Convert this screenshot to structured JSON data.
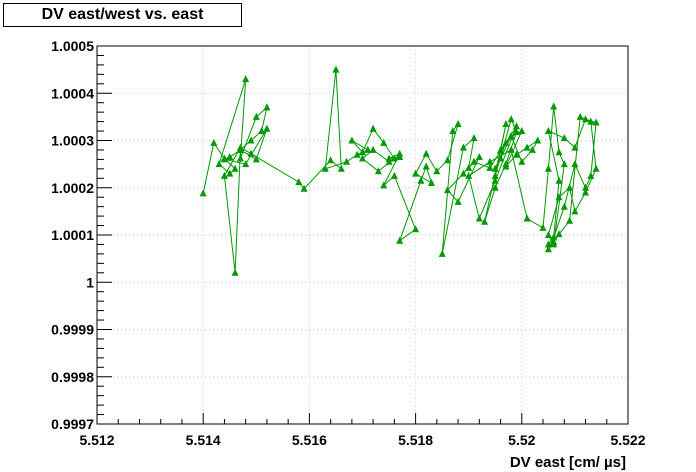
{
  "chart_data": {
    "type": "scatter",
    "title": "DV east/west vs. east",
    "xlabel": "DV east [cm/ µs]",
    "ylabel": "",
    "xlim": [
      5.512,
      5.522
    ],
    "ylim": [
      0.9997,
      1.0005
    ],
    "xticks": [
      "5.512",
      "5.514",
      "5.516",
      "5.518",
      "5.52",
      "5.522"
    ],
    "yticks": [
      "0.9997",
      "0.9998",
      "0.9999",
      "1",
      "1.0001",
      "1.0002",
      "1.0003",
      "1.0004",
      "1.0005"
    ],
    "grid": true,
    "color": "#009900",
    "marker": "triangle",
    "connected": true,
    "series": [
      {
        "x": [
          5.514,
          5.5142,
          5.5144,
          5.5146,
          5.5145,
          5.5143,
          5.5148,
          5.5147,
          5.515,
          5.5152,
          5.5151,
          5.5149,
          5.5147,
          5.5145,
          5.5144,
          5.5148,
          5.5152,
          5.515,
          5.5147,
          5.5146,
          5.5144,
          5.5147,
          5.5149,
          5.5158,
          5.5159,
          5.5164,
          5.5166,
          5.5165,
          5.5163,
          5.5167,
          5.5169,
          5.5171,
          5.5168,
          5.517,
          5.5172,
          5.5174,
          5.5176,
          5.5173,
          5.517,
          5.5172,
          5.5175,
          5.5177,
          5.5175,
          5.5177,
          5.5174,
          5.5176,
          5.518,
          5.5177,
          5.5181,
          5.5182,
          5.5183,
          5.518,
          5.5182,
          5.5184,
          5.5186,
          5.5188,
          5.5187,
          5.5185,
          5.5189,
          5.5191,
          5.519,
          5.5192,
          5.5188,
          5.5186,
          5.5189,
          5.5191,
          5.5194,
          5.5196,
          5.5197,
          5.5195,
          5.5198,
          5.5199,
          5.5197,
          5.5195,
          5.5193,
          5.5196,
          5.5198,
          5.52,
          5.5197,
          5.5199,
          5.5201,
          5.5203,
          5.5202,
          5.52,
          5.5198,
          5.5196,
          5.5195,
          5.5197,
          5.5199,
          5.5195,
          5.5192,
          5.519,
          5.5194,
          5.5198,
          5.5201,
          5.5204,
          5.5205,
          5.5206,
          5.5207,
          5.5208,
          5.5206,
          5.5205,
          5.5207,
          5.5209,
          5.521,
          5.5212,
          5.5214,
          5.5213,
          5.5211,
          5.5209,
          5.5207,
          5.5206,
          5.5205,
          5.5206,
          5.5208,
          5.521,
          5.5212,
          5.5213,
          5.5214,
          5.5212,
          5.521,
          5.5208,
          5.5205,
          5.5207,
          5.5206,
          5.5205
        ],
        "y": [
          1.000188,
          1.000295,
          1.000262,
          1.00024,
          1.00023,
          1.00025,
          1.00043,
          1.000262,
          1.00035,
          1.00037,
          1.00032,
          1.0003,
          1.00028,
          1.000265,
          1.00026,
          1.00025,
          1.000325,
          1.00026,
          1.00028,
          1.00002,
          1.000225,
          1.000285,
          1.000272,
          1.000212,
          1.000198,
          1.000258,
          1.00024,
          1.00045,
          1.00024,
          1.000255,
          1.00027,
          1.00028,
          1.0003,
          1.000275,
          1.000325,
          1.000295,
          1.000262,
          1.000235,
          1.000262,
          1.00028,
          1.000255,
          1.000265,
          1.000262,
          1.000272,
          1.000205,
          1.000225,
          1.000112,
          1.000088,
          1.000215,
          1.000245,
          1.00021,
          1.00023,
          1.000272,
          1.000235,
          1.000258,
          1.000335,
          1.00032,
          1.00006,
          1.000285,
          1.000305,
          1.000242,
          1.000265,
          1.00017,
          1.000195,
          1.00023,
          1.000255,
          1.000242,
          1.000278,
          1.000335,
          1.000225,
          1.000345,
          1.000318,
          1.00025,
          1.0002,
          1.000128,
          1.00028,
          1.000308,
          1.00032,
          1.000245,
          1.00027,
          1.000285,
          1.0003,
          1.00028,
          1.000255,
          1.00031,
          1.000262,
          1.00024,
          1.000295,
          1.00033,
          1.000215,
          1.000135,
          1.000225,
          1.000255,
          1.00028,
          1.000135,
          1.000115,
          1.00024,
          1.000372,
          1.000275,
          1.00025,
          1.00008,
          1.0001,
          1.00018,
          1.0002,
          1.00015,
          1.00019,
          1.00024,
          1.00034,
          1.00035,
          1.00013,
          1.000102,
          1.000085,
          1.00007,
          1.000095,
          1.00016,
          1.00025,
          1.0002,
          1.000225,
          1.000338,
          1.000345,
          1.000285,
          1.000305,
          1.00032,
          1.000215,
          1.000095,
          1.00008
        ]
      }
    ]
  }
}
